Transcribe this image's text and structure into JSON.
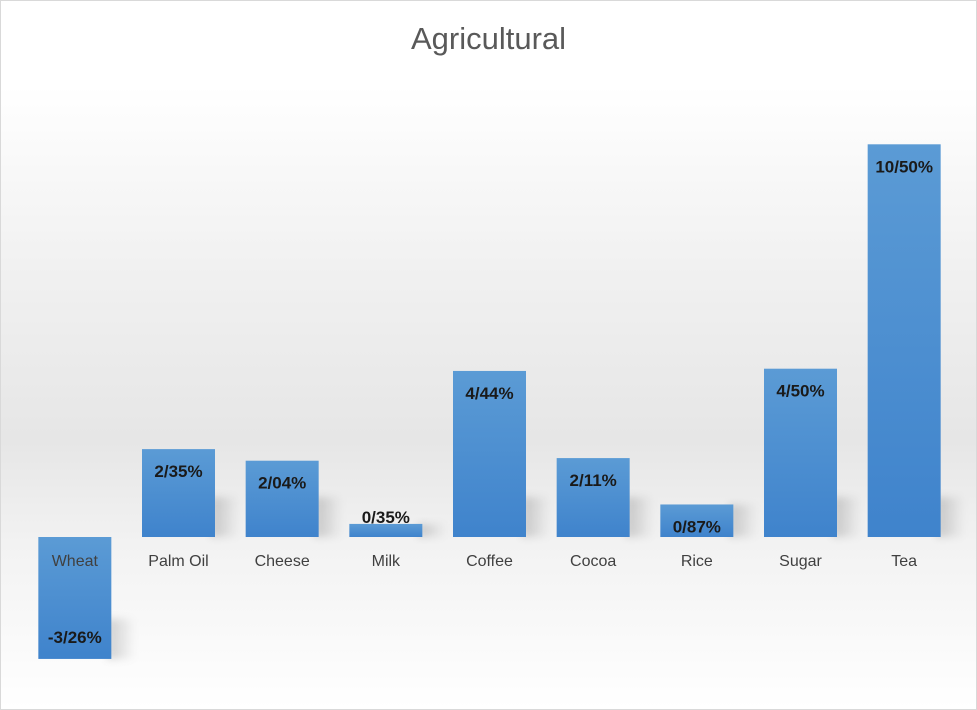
{
  "chart_data": {
    "type": "bar",
    "title": "Agricultural",
    "xlabel": "",
    "ylabel": "",
    "categories": [
      "Wheat",
      "Palm Oil",
      "Cheese",
      "Milk",
      "Coffee",
      "Cocoa",
      "Rice",
      "Sugar",
      "Tea"
    ],
    "values": [
      -3.26,
      2.35,
      2.04,
      0.35,
      4.44,
      2.11,
      0.87,
      4.5,
      10.5
    ],
    "data_labels": [
      "-3/26%",
      "2/35%",
      "2/04%",
      "0/35%",
      "4/44%",
      "2/11%",
      "0/87%",
      "4/50%",
      "10/50%"
    ],
    "ylim": [
      -4,
      11
    ],
    "grid": false,
    "legend": "none",
    "bar_color": "#4a8fd4",
    "bar_color_light": "#5b9bd5",
    "bar_color_dark": "#3f83cc"
  }
}
